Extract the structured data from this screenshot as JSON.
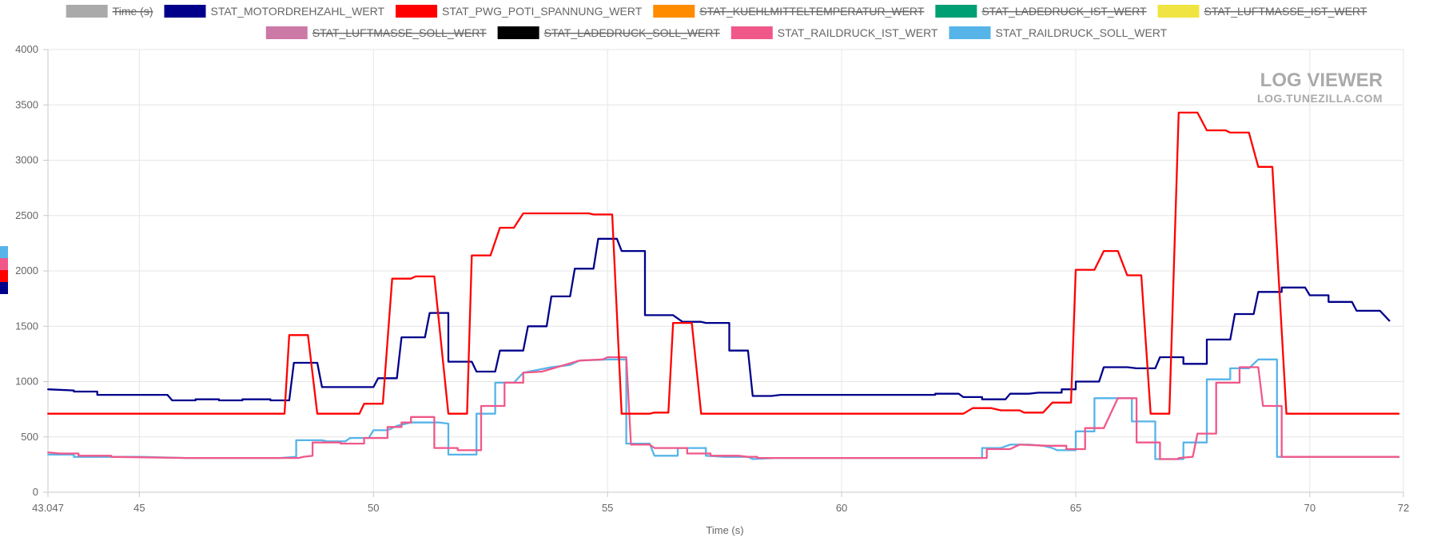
{
  "watermark": {
    "title": "LOG VIEWER",
    "subtitle": "LOG.TUNEZILLA.COM"
  },
  "chart_data": {
    "type": "line",
    "title": "",
    "xlabel": "Time (s)",
    "ylabel": "",
    "xlim": [
      43.047,
      72
    ],
    "ylim": [
      0,
      4000
    ],
    "xticks": [
      "43.047",
      "45",
      "50",
      "55",
      "60",
      "65",
      "70",
      "72"
    ],
    "xtick_values": [
      43.047,
      45,
      50,
      55,
      60,
      65,
      70,
      72
    ],
    "yticks": [
      0,
      500,
      1000,
      1500,
      2000,
      2500,
      3000,
      3500,
      4000
    ],
    "grid": true,
    "legend_position": "top",
    "legend": [
      {
        "name": "Time (s)",
        "color": "#aaaaaa",
        "hidden": true
      },
      {
        "name": "STAT_MOTORDREHZAHL_WERT",
        "color": "#00008b",
        "hidden": false
      },
      {
        "name": "STAT_PWG_POTI_SPANNUNG_WERT",
        "color": "#ff0000",
        "hidden": false
      },
      {
        "name": "STAT_KUEHLMITTELTEMPERATUR_WERT",
        "color": "#ff8c00",
        "hidden": true
      },
      {
        "name": "STAT_LADEDRUCK_IST_WERT",
        "color": "#009e73",
        "hidden": true
      },
      {
        "name": "STAT_LUFTMASSE_IST_WERT",
        "color": "#f0e442",
        "hidden": true
      },
      {
        "name": "STAT_LUFTMASSE_SOLL_WERT",
        "color": "#cc79a7",
        "hidden": true
      },
      {
        "name": "STAT_LADEDRUCK_SOLL_WERT",
        "color": "#000000",
        "hidden": true
      },
      {
        "name": "STAT_RAILDRUCK_IST_WERT",
        "color": "#f0588a",
        "hidden": false
      },
      {
        "name": "STAT_RAILDRUCK_SOLL_WERT",
        "color": "#56b4e9",
        "hidden": false
      }
    ],
    "series": [
      {
        "name": "STAT_RAILDRUCK_SOLL_WERT",
        "color": "#56b4e9",
        "points": [
          [
            43.05,
            340
          ],
          [
            43.6,
            340
          ],
          [
            43.6,
            320
          ],
          [
            45,
            320
          ],
          [
            46,
            310
          ],
          [
            48,
            310
          ],
          [
            48.35,
            320
          ],
          [
            48.35,
            470
          ],
          [
            48.9,
            470
          ],
          [
            49.0,
            460
          ],
          [
            49.4,
            460
          ],
          [
            49.5,
            490
          ],
          [
            49.9,
            490
          ],
          [
            50,
            560
          ],
          [
            50.3,
            560
          ],
          [
            50.5,
            600
          ],
          [
            50.8,
            630
          ],
          [
            51.4,
            630
          ],
          [
            51.6,
            620
          ],
          [
            51.6,
            340
          ],
          [
            52.2,
            340
          ],
          [
            52.2,
            710
          ],
          [
            52.6,
            710
          ],
          [
            52.6,
            990
          ],
          [
            53.0,
            990
          ],
          [
            53.2,
            1080
          ],
          [
            53.8,
            1130
          ],
          [
            54.2,
            1150
          ],
          [
            54.4,
            1190
          ],
          [
            55.0,
            1200
          ],
          [
            55.4,
            1200
          ],
          [
            55.4,
            440
          ],
          [
            55.9,
            440
          ],
          [
            56.0,
            330
          ],
          [
            56.5,
            330
          ],
          [
            56.5,
            400
          ],
          [
            57.1,
            400
          ],
          [
            57.1,
            330
          ],
          [
            57.5,
            320
          ],
          [
            58.0,
            320
          ],
          [
            58.1,
            300
          ],
          [
            58.6,
            310
          ],
          [
            62.5,
            310
          ],
          [
            63.0,
            310
          ],
          [
            63.0,
            400
          ],
          [
            63.4,
            400
          ],
          [
            63.6,
            430
          ],
          [
            64.0,
            430
          ],
          [
            64.3,
            420
          ],
          [
            64.5,
            400
          ],
          [
            64.6,
            380
          ],
          [
            65.0,
            380
          ],
          [
            65.0,
            550
          ],
          [
            65.4,
            550
          ],
          [
            65.4,
            850
          ],
          [
            66.2,
            850
          ],
          [
            66.2,
            640
          ],
          [
            66.7,
            640
          ],
          [
            66.7,
            300
          ],
          [
            67.3,
            300
          ],
          [
            67.3,
            450
          ],
          [
            67.8,
            450
          ],
          [
            67.8,
            1020
          ],
          [
            68.3,
            1020
          ],
          [
            68.3,
            1120
          ],
          [
            68.7,
            1120
          ],
          [
            68.9,
            1200
          ],
          [
            69.3,
            1200
          ],
          [
            69.3,
            320
          ],
          [
            71.9,
            320
          ]
        ]
      },
      {
        "name": "STAT_RAILDRUCK_IST_WERT",
        "color": "#f0588a",
        "points": [
          [
            43.05,
            360
          ],
          [
            43.3,
            350
          ],
          [
            43.7,
            350
          ],
          [
            43.7,
            330
          ],
          [
            44.4,
            330
          ],
          [
            44.4,
            320
          ],
          [
            46.0,
            310
          ],
          [
            48.4,
            310
          ],
          [
            48.5,
            320
          ],
          [
            48.7,
            330
          ],
          [
            48.7,
            450
          ],
          [
            49.3,
            450
          ],
          [
            49.3,
            440
          ],
          [
            49.8,
            440
          ],
          [
            49.8,
            490
          ],
          [
            50.1,
            490
          ],
          [
            50.3,
            490
          ],
          [
            50.3,
            590
          ],
          [
            50.6,
            590
          ],
          [
            50.6,
            630
          ],
          [
            50.8,
            630
          ],
          [
            50.8,
            680
          ],
          [
            51.3,
            680
          ],
          [
            51.3,
            400
          ],
          [
            51.8,
            400
          ],
          [
            51.8,
            380
          ],
          [
            52.3,
            380
          ],
          [
            52.3,
            780
          ],
          [
            52.8,
            780
          ],
          [
            52.8,
            990
          ],
          [
            53.2,
            990
          ],
          [
            53.2,
            1080
          ],
          [
            53.6,
            1090
          ],
          [
            54.0,
            1140
          ],
          [
            54.4,
            1190
          ],
          [
            54.9,
            1200
          ],
          [
            55.0,
            1220
          ],
          [
            55.4,
            1220
          ],
          [
            55.5,
            430
          ],
          [
            55.9,
            430
          ],
          [
            56.0,
            400
          ],
          [
            56.7,
            400
          ],
          [
            56.7,
            350
          ],
          [
            57.2,
            350
          ],
          [
            57.2,
            330
          ],
          [
            57.8,
            330
          ],
          [
            58.0,
            320
          ],
          [
            58.2,
            320
          ],
          [
            58.2,
            310
          ],
          [
            62.8,
            310
          ],
          [
            63.1,
            310
          ],
          [
            63.1,
            390
          ],
          [
            63.6,
            390
          ],
          [
            63.8,
            430
          ],
          [
            64.4,
            420
          ],
          [
            64.8,
            420
          ],
          [
            64.8,
            390
          ],
          [
            65.2,
            390
          ],
          [
            65.2,
            580
          ],
          [
            65.6,
            580
          ],
          [
            65.9,
            850
          ],
          [
            66.3,
            850
          ],
          [
            66.3,
            450
          ],
          [
            66.8,
            450
          ],
          [
            66.8,
            300
          ],
          [
            67.2,
            300
          ],
          [
            67.2,
            310
          ],
          [
            67.5,
            320
          ],
          [
            67.6,
            530
          ],
          [
            68.0,
            530
          ],
          [
            68.0,
            990
          ],
          [
            68.5,
            990
          ],
          [
            68.5,
            1130
          ],
          [
            68.9,
            1130
          ],
          [
            69.0,
            780
          ],
          [
            69.4,
            780
          ],
          [
            69.4,
            320
          ],
          [
            71.9,
            320
          ]
        ]
      },
      {
        "name": "STAT_MOTORDREHZAHL_WERT",
        "color": "#00008b",
        "points": [
          [
            43.05,
            930
          ],
          [
            43.6,
            920
          ],
          [
            43.6,
            910
          ],
          [
            44.1,
            910
          ],
          [
            44.1,
            880
          ],
          [
            45.6,
            880
          ],
          [
            45.7,
            830
          ],
          [
            46.2,
            830
          ],
          [
            46.2,
            840
          ],
          [
            46.7,
            840
          ],
          [
            46.7,
            830
          ],
          [
            47.2,
            830
          ],
          [
            47.2,
            840
          ],
          [
            47.8,
            840
          ],
          [
            47.8,
            830
          ],
          [
            48.2,
            830
          ],
          [
            48.3,
            1170
          ],
          [
            48.8,
            1170
          ],
          [
            48.9,
            950
          ],
          [
            50.0,
            950
          ],
          [
            50.1,
            1030
          ],
          [
            50.5,
            1030
          ],
          [
            50.6,
            1400
          ],
          [
            51.1,
            1400
          ],
          [
            51.2,
            1620
          ],
          [
            51.6,
            1620
          ],
          [
            51.6,
            1180
          ],
          [
            52.1,
            1180
          ],
          [
            52.2,
            1090
          ],
          [
            52.6,
            1090
          ],
          [
            52.7,
            1280
          ],
          [
            53.2,
            1280
          ],
          [
            53.3,
            1500
          ],
          [
            53.7,
            1500
          ],
          [
            53.8,
            1770
          ],
          [
            54.2,
            1770
          ],
          [
            54.3,
            2020
          ],
          [
            54.7,
            2020
          ],
          [
            54.8,
            2290
          ],
          [
            55.2,
            2290
          ],
          [
            55.3,
            2180
          ],
          [
            55.8,
            2180
          ],
          [
            55.8,
            1600
          ],
          [
            56.4,
            1600
          ],
          [
            56.6,
            1540
          ],
          [
            57.0,
            1540
          ],
          [
            57.1,
            1530
          ],
          [
            57.6,
            1530
          ],
          [
            57.6,
            1280
          ],
          [
            58.0,
            1280
          ],
          [
            58.1,
            870
          ],
          [
            58.5,
            870
          ],
          [
            58.7,
            880
          ],
          [
            62.0,
            880
          ],
          [
            62.0,
            890
          ],
          [
            62.5,
            890
          ],
          [
            62.6,
            860
          ],
          [
            63.0,
            860
          ],
          [
            63.0,
            840
          ],
          [
            63.5,
            840
          ],
          [
            63.6,
            890
          ],
          [
            64.0,
            890
          ],
          [
            64.2,
            900
          ],
          [
            64.7,
            900
          ],
          [
            64.7,
            930
          ],
          [
            65.0,
            930
          ],
          [
            65.0,
            1000
          ],
          [
            65.5,
            1000
          ],
          [
            65.6,
            1130
          ],
          [
            66.1,
            1130
          ],
          [
            66.3,
            1120
          ],
          [
            66.7,
            1120
          ],
          [
            66.8,
            1220
          ],
          [
            67.3,
            1220
          ],
          [
            67.3,
            1160
          ],
          [
            67.8,
            1160
          ],
          [
            67.8,
            1380
          ],
          [
            68.3,
            1380
          ],
          [
            68.4,
            1610
          ],
          [
            68.8,
            1610
          ],
          [
            68.9,
            1810
          ],
          [
            69.4,
            1810
          ],
          [
            69.4,
            1850
          ],
          [
            69.9,
            1850
          ],
          [
            70.0,
            1780
          ],
          [
            70.4,
            1780
          ],
          [
            70.4,
            1720
          ],
          [
            70.9,
            1720
          ],
          [
            71.0,
            1640
          ],
          [
            71.5,
            1640
          ],
          [
            71.7,
            1550
          ]
        ]
      },
      {
        "name": "STAT_PWG_POTI_SPANNUNG_WERT",
        "color": "#ff0000",
        "points": [
          [
            43.05,
            710
          ],
          [
            48.1,
            710
          ],
          [
            48.2,
            1420
          ],
          [
            48.6,
            1420
          ],
          [
            48.8,
            710
          ],
          [
            49.7,
            710
          ],
          [
            49.8,
            800
          ],
          [
            50.2,
            800
          ],
          [
            50.4,
            1930
          ],
          [
            50.8,
            1930
          ],
          [
            50.9,
            1950
          ],
          [
            51.3,
            1950
          ],
          [
            51.6,
            710
          ],
          [
            52.0,
            710
          ],
          [
            52.1,
            2140
          ],
          [
            52.5,
            2140
          ],
          [
            52.7,
            2390
          ],
          [
            53.0,
            2390
          ],
          [
            53.2,
            2520
          ],
          [
            54.6,
            2520
          ],
          [
            54.7,
            2510
          ],
          [
            55.1,
            2510
          ],
          [
            55.3,
            710
          ],
          [
            55.9,
            710
          ],
          [
            56.0,
            720
          ],
          [
            56.3,
            720
          ],
          [
            56.4,
            1530
          ],
          [
            56.8,
            1530
          ],
          [
            57.0,
            710
          ],
          [
            62.6,
            710
          ],
          [
            62.8,
            760
          ],
          [
            63.2,
            760
          ],
          [
            63.4,
            740
          ],
          [
            63.8,
            740
          ],
          [
            63.9,
            720
          ],
          [
            64.3,
            720
          ],
          [
            64.5,
            810
          ],
          [
            64.9,
            810
          ],
          [
            65.0,
            2010
          ],
          [
            65.4,
            2010
          ],
          [
            65.6,
            2180
          ],
          [
            65.9,
            2180
          ],
          [
            66.1,
            1960
          ],
          [
            66.4,
            1960
          ],
          [
            66.6,
            710
          ],
          [
            67.0,
            710
          ],
          [
            67.2,
            3430
          ],
          [
            67.6,
            3430
          ],
          [
            67.8,
            3270
          ],
          [
            68.2,
            3270
          ],
          [
            68.3,
            3250
          ],
          [
            68.7,
            3250
          ],
          [
            68.9,
            2940
          ],
          [
            69.2,
            2940
          ],
          [
            69.5,
            710
          ],
          [
            71.9,
            710
          ]
        ]
      }
    ]
  }
}
